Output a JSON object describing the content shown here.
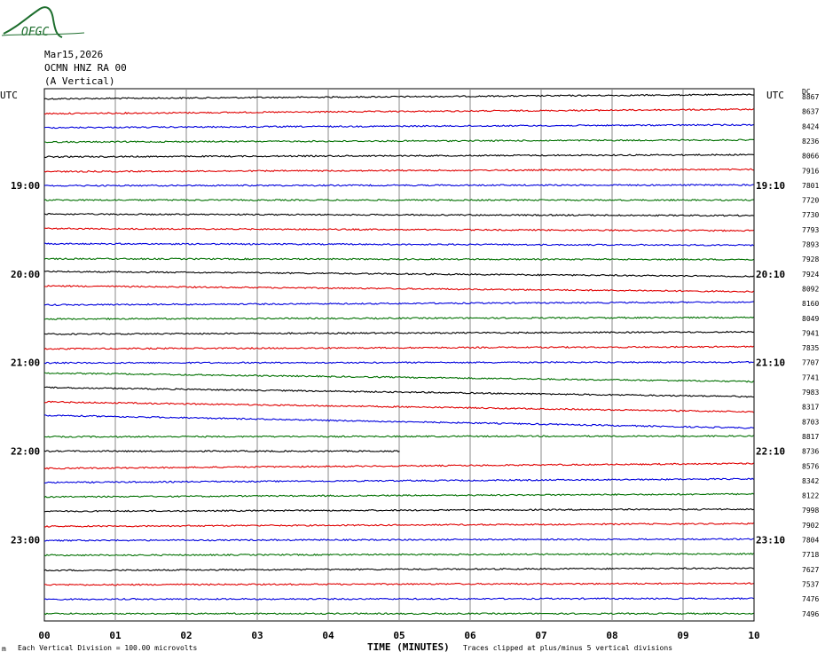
{
  "logo": {
    "text": "OFGC",
    "color": "#1d6e2d"
  },
  "header": {
    "date": "Mar15,2026",
    "station": "OCMN HNZ RA 00",
    "component": "(A Vertical)"
  },
  "left_axis_title": "UTC",
  "right_axis_title": "UTC",
  "dc_title": "DC",
  "footer": {
    "left_note": "Each Vertical Division =  100.00 microvolts",
    "xlabel": "TIME (MINUTES)",
    "right_note": "Traces clipped at plus/minus 5 vertical divisions",
    "corner_mark": "m"
  },
  "chart_data": {
    "type": "line",
    "title": "",
    "xlabel": "TIME (MINUTES)",
    "xlim": [
      0,
      10
    ],
    "x_ticks": [
      "00",
      "01",
      "02",
      "03",
      "04",
      "05",
      "06",
      "07",
      "08",
      "09",
      "10"
    ],
    "grid": "vertical lines each minute",
    "trace_colors": [
      "#000000",
      "#e00000",
      "#0000dd",
      "#007000"
    ],
    "left_time_labels": [
      {
        "row": 6,
        "label": "19:00"
      },
      {
        "row": 12,
        "label": "20:00"
      },
      {
        "row": 18,
        "label": "21:00"
      },
      {
        "row": 24,
        "label": "22:00"
      },
      {
        "row": 30,
        "label": "23:00"
      }
    ],
    "right_time_labels": [
      {
        "row": 6,
        "label": "19:10"
      },
      {
        "row": 12,
        "label": "20:10"
      },
      {
        "row": 18,
        "label": "21:10"
      },
      {
        "row": 24,
        "label": "22:10"
      },
      {
        "row": 30,
        "label": "23:10"
      }
    ],
    "dc_offsets": [
      "8867",
      "8637",
      "8424",
      "8236",
      "8066",
      "7916",
      "7801",
      "7720",
      "7730",
      "7793",
      "7893",
      "7928",
      "7924",
      "8092",
      "8160",
      "8049",
      "7941",
      "7835",
      "7707",
      "7741",
      "7983",
      "8317",
      "8703",
      "8817",
      "8736",
      "8576",
      "8342",
      "8122",
      "7998",
      "7902",
      "7804",
      "7718",
      "7627",
      "7537",
      "7476",
      "7496"
    ],
    "trace_drift": [
      0.6,
      0.6,
      0.4,
      0.3,
      0.3,
      0.3,
      0.1,
      0.0,
      -0.2,
      -0.3,
      -0.2,
      -0.1,
      -0.7,
      -0.8,
      0.4,
      0.2,
      0.3,
      0.3,
      0.1,
      -1.2,
      -1.3,
      -1.4,
      -1.8,
      0.1,
      0.0,
      0.7,
      0.5,
      0.4,
      0.3,
      0.4,
      0.2,
      0.2,
      0.3,
      0.2,
      0.1,
      0.0
    ],
    "trace_end_minutes": [
      10,
      10,
      10,
      10,
      10,
      10,
      10,
      10,
      10,
      10,
      10,
      10,
      10,
      10,
      10,
      10,
      10,
      10,
      10,
      10,
      10,
      10,
      10,
      10,
      5.0,
      10,
      10,
      10,
      10,
      10,
      10,
      10,
      10,
      10,
      10,
      10
    ]
  }
}
